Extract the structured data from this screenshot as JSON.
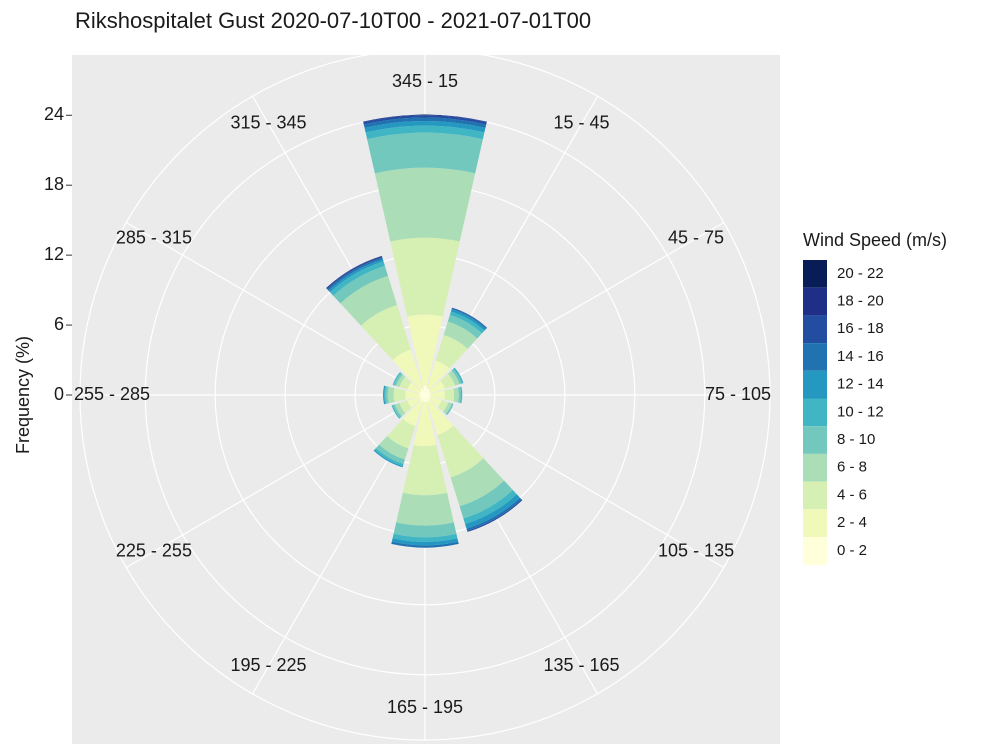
{
  "chart_data": {
    "type": "windrose",
    "title": "Rikshospitalet Gust  2020-07-10T00 - 2021-07-01T00",
    "y_label": "Frequency (%)",
    "legend_title": "Wind Speed (m/s)",
    "categories": [
      "345 - 15",
      "15 - 45",
      "45 - 75",
      "75 - 105",
      "105 - 135",
      "135 - 165",
      "165 - 195",
      "195 - 225",
      "225 - 255",
      "255 - 285",
      "285 - 315",
      "315 - 345"
    ],
    "series": [
      {
        "name": "0 - 2",
        "color": "#ffffd9",
        "values": [
          0.8,
          0.6,
          0.5,
          0.5,
          0.5,
          0.6,
          0.6,
          0.6,
          0.5,
          0.5,
          0.5,
          0.6
        ]
      },
      {
        "name": "2 - 4",
        "color": "#f0f9b9",
        "values": [
          6.1,
          2.5,
          1.3,
          1.2,
          1.0,
          3.0,
          3.8,
          2.2,
          1.1,
          1.2,
          1.1,
          3.5
        ]
      },
      {
        "name": "4 - 6",
        "color": "#d6efb3",
        "values": [
          6.6,
          2.3,
          0.9,
          0.8,
          0.6,
          3.8,
          4.2,
          2.0,
          0.7,
          1.0,
          0.7,
          4.0
        ]
      },
      {
        "name": "6 - 8",
        "color": "#abdeb7",
        "values": [
          6.0,
          1.2,
          0.4,
          0.4,
          0.3,
          2.6,
          2.6,
          1.0,
          0.4,
          0.5,
          0.3,
          2.6
        ]
      },
      {
        "name": "8 - 10",
        "color": "#73c8bd",
        "values": [
          3.0,
          0.6,
          0.2,
          0.2,
          0.1,
          1.1,
          1.0,
          0.4,
          0.2,
          0.2,
          0.2,
          0.9
        ]
      },
      {
        "name": "10 - 12",
        "color": "#40b5c4",
        "values": [
          0.6,
          0.3,
          0.1,
          0.1,
          0.05,
          0.5,
          0.4,
          0.2,
          0.1,
          0.1,
          0.1,
          0.4
        ]
      },
      {
        "name": "12 - 14",
        "color": "#2498c1",
        "values": [
          0.4,
          0.2,
          0.05,
          0,
          0,
          0.4,
          0.3,
          0.1,
          0,
          0.1,
          0,
          0.2
        ]
      },
      {
        "name": "14 - 16",
        "color": "#2072b1",
        "values": [
          0.3,
          0.1,
          0,
          0,
          0,
          0.2,
          0.2,
          0,
          0,
          0,
          0,
          0.15
        ]
      },
      {
        "name": "16 - 18",
        "color": "#234da0",
        "values": [
          0.2,
          0.05,
          0,
          0,
          0,
          0.1,
          0,
          0,
          0,
          0,
          0,
          0.1
        ]
      },
      {
        "name": "18 - 20",
        "color": "#1f2f88",
        "values": [
          0.05,
          0,
          0,
          0,
          0,
          0,
          0,
          0,
          0,
          0,
          0,
          0.05
        ]
      },
      {
        "name": "20 - 22",
        "color": "#081d58",
        "values": [
          0,
          0,
          0,
          0,
          0,
          0,
          0,
          0,
          0,
          0,
          0,
          0
        ]
      }
    ],
    "ylim": [
      0,
      29.6
    ],
    "yticks": [
      0,
      6,
      12,
      18,
      24
    ],
    "grid": true
  }
}
